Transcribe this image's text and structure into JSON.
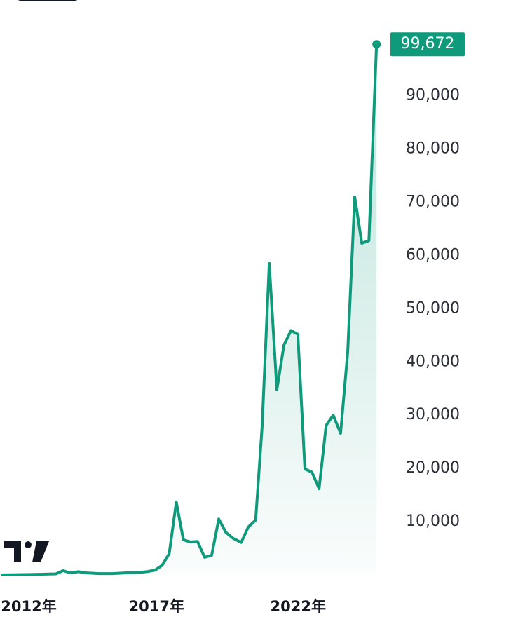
{
  "chart_data": {
    "type": "line",
    "x": [
      2011.5,
      2012.7,
      2013.45,
      2013.7,
      2013.95,
      2014.25,
      2014.5,
      2014.95,
      2015.45,
      2015.95,
      2016.45,
      2016.7,
      2016.95,
      2017.2,
      2017.45,
      2017.7,
      2017.95,
      2018.2,
      2018.45,
      2018.7,
      2018.95,
      2019.2,
      2019.45,
      2019.7,
      2019.99,
      2020.24,
      2020.5,
      2020.73,
      2020.98,
      2021.25,
      2021.5,
      2021.75,
      2021.99,
      2022.24,
      2022.49,
      2022.74,
      2022.99,
      2023.24,
      2023.5,
      2023.75,
      2024.0,
      2024.25,
      2024.5,
      2024.77
    ],
    "series": [
      {
        "color": "#0f9a7c",
        "values": [
          0,
          100,
          200,
          800,
          400,
          600,
          400,
          250,
          250,
          400,
          500,
          650,
          900,
          1800,
          4000,
          13700,
          6600,
          6200,
          6300,
          3300,
          3700,
          10500,
          8000,
          6900,
          6100,
          9000,
          10300,
          28000,
          58500,
          34800,
          43200,
          45900,
          45200,
          19900,
          19300,
          16200,
          28100,
          30000,
          26600,
          41800,
          71000,
          62300,
          62800,
          99672
        ],
        "value_labels": [
          null,
          null,
          null,
          null,
          null,
          null,
          null,
          null,
          null,
          null,
          null,
          null,
          null,
          null,
          null,
          null,
          null,
          null,
          null,
          null,
          null,
          null,
          null,
          null,
          null,
          null,
          null,
          null,
          null,
          null,
          null,
          null,
          null,
          null,
          null,
          null,
          null,
          null,
          null,
          null,
          null,
          null,
          null,
          "99,672"
        ]
      }
    ],
    "xlim": [
      2011.5,
      2025
    ],
    "xticks": [
      {
        "value": 2012,
        "label": "2012年"
      },
      {
        "value": 2017,
        "label": "2017年"
      },
      {
        "value": 2022,
        "label": "2022年"
      }
    ],
    "ylim": [
      0,
      108000
    ],
    "yticks": [
      {
        "value": 10000,
        "label": "10,000"
      },
      {
        "value": 20000,
        "label": "20,000"
      },
      {
        "value": 30000,
        "label": "30,000"
      },
      {
        "value": 40000,
        "label": "40,000"
      },
      {
        "value": 50000,
        "label": "50,000"
      },
      {
        "value": 60000,
        "label": "60,000"
      },
      {
        "value": 70000,
        "label": "70,000"
      },
      {
        "value": 80000,
        "label": "80,000"
      },
      {
        "value": 90000,
        "label": "90,000"
      }
    ],
    "grid": false
  }
}
